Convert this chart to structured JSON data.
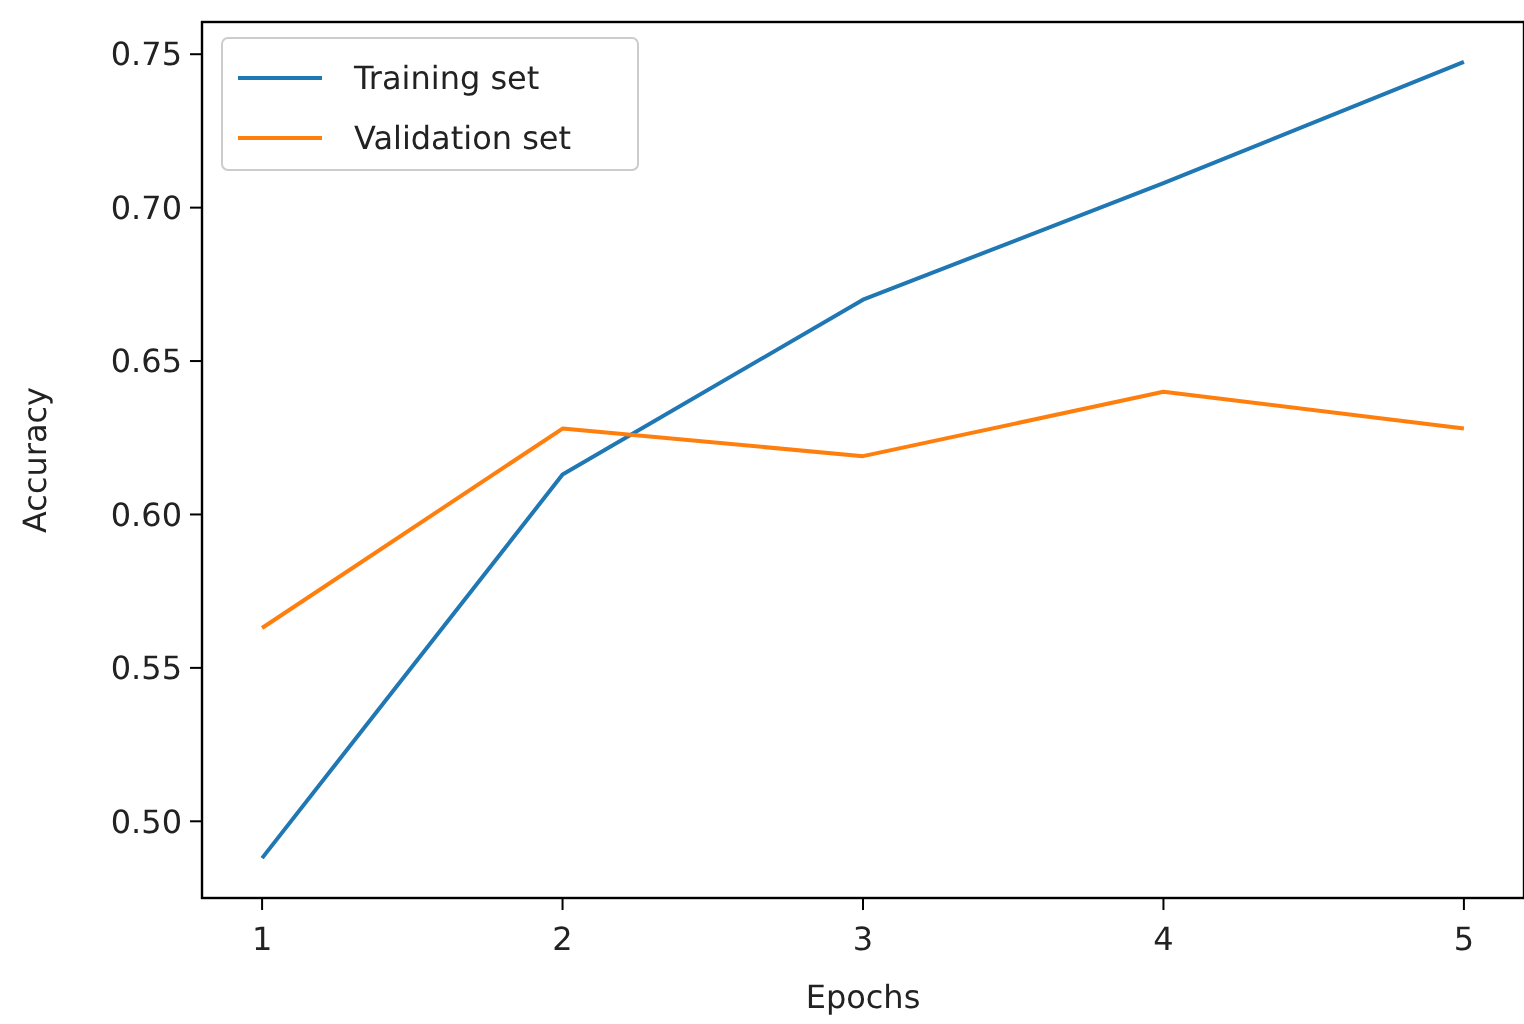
{
  "chart_data": {
    "type": "line",
    "xlabel": "Epochs",
    "ylabel": "Accuracy",
    "x": [
      1,
      2,
      3,
      4,
      5
    ],
    "xlim": [
      0.8,
      5.2
    ],
    "xticks": [
      1,
      2,
      3,
      4,
      5
    ],
    "ylim": [
      0.475,
      0.7605
    ],
    "yticks": [
      {
        "value": 0.5,
        "label": "0.50"
      },
      {
        "value": 0.55,
        "label": "0.55"
      },
      {
        "value": 0.6,
        "label": "0.60"
      },
      {
        "value": 0.65,
        "label": "0.65"
      },
      {
        "value": 0.7,
        "label": "0.70"
      },
      {
        "value": 0.75,
        "label": "0.75"
      }
    ],
    "series": [
      {
        "name": "Training set",
        "color": "#1f77b4",
        "values": [
          0.488,
          0.613,
          0.67,
          0.708,
          0.7475
        ]
      },
      {
        "name": "Validation set",
        "color": "#ff7f0e",
        "values": [
          0.563,
          0.628,
          0.619,
          0.64,
          0.628
        ]
      }
    ],
    "legend": "top left",
    "grid": false,
    "marker": "none",
    "line_style": "solid"
  }
}
